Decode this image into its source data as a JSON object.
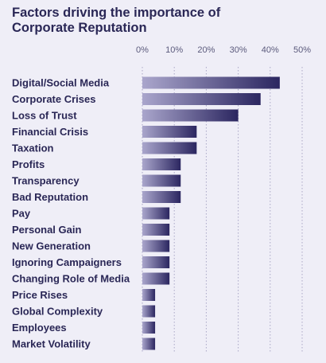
{
  "title_lines": [
    "Factors driving the importance of",
    "Corporate Reputation"
  ],
  "chart_data": {
    "type": "bar",
    "orientation": "horizontal",
    "title": "Factors driving the importance of Corporate Reputation",
    "xlabel": "",
    "ylabel": "",
    "xlim": [
      0,
      50
    ],
    "x_ticks": [
      0,
      10,
      20,
      30,
      40,
      50
    ],
    "x_tick_labels": [
      "0%",
      "10%",
      "20%",
      "30%",
      "40%",
      "50%"
    ],
    "grid": "vertical dotted",
    "categories": [
      "Digital/Social Media",
      "Corporate Crises",
      "Loss of Trust",
      "Financial Crisis",
      "Taxation",
      "Profits",
      "Transparency",
      "Bad Reputation",
      "Pay",
      "Personal Gain",
      "New Generation",
      "Ignoring Campaigners",
      "Changing Role of Media",
      "Price Rises",
      "Global Complexity",
      "Employees",
      "Market Volatility"
    ],
    "values": [
      43,
      37,
      30,
      17,
      17,
      12,
      12,
      12,
      8.5,
      8.5,
      8.5,
      8.5,
      8.5,
      4,
      4,
      4,
      4
    ],
    "colors": {
      "bar_dark": "#2b2660",
      "bar_light": "#aaa6cc",
      "grid": "#a9a7c6",
      "text": "#2a2756"
    }
  }
}
